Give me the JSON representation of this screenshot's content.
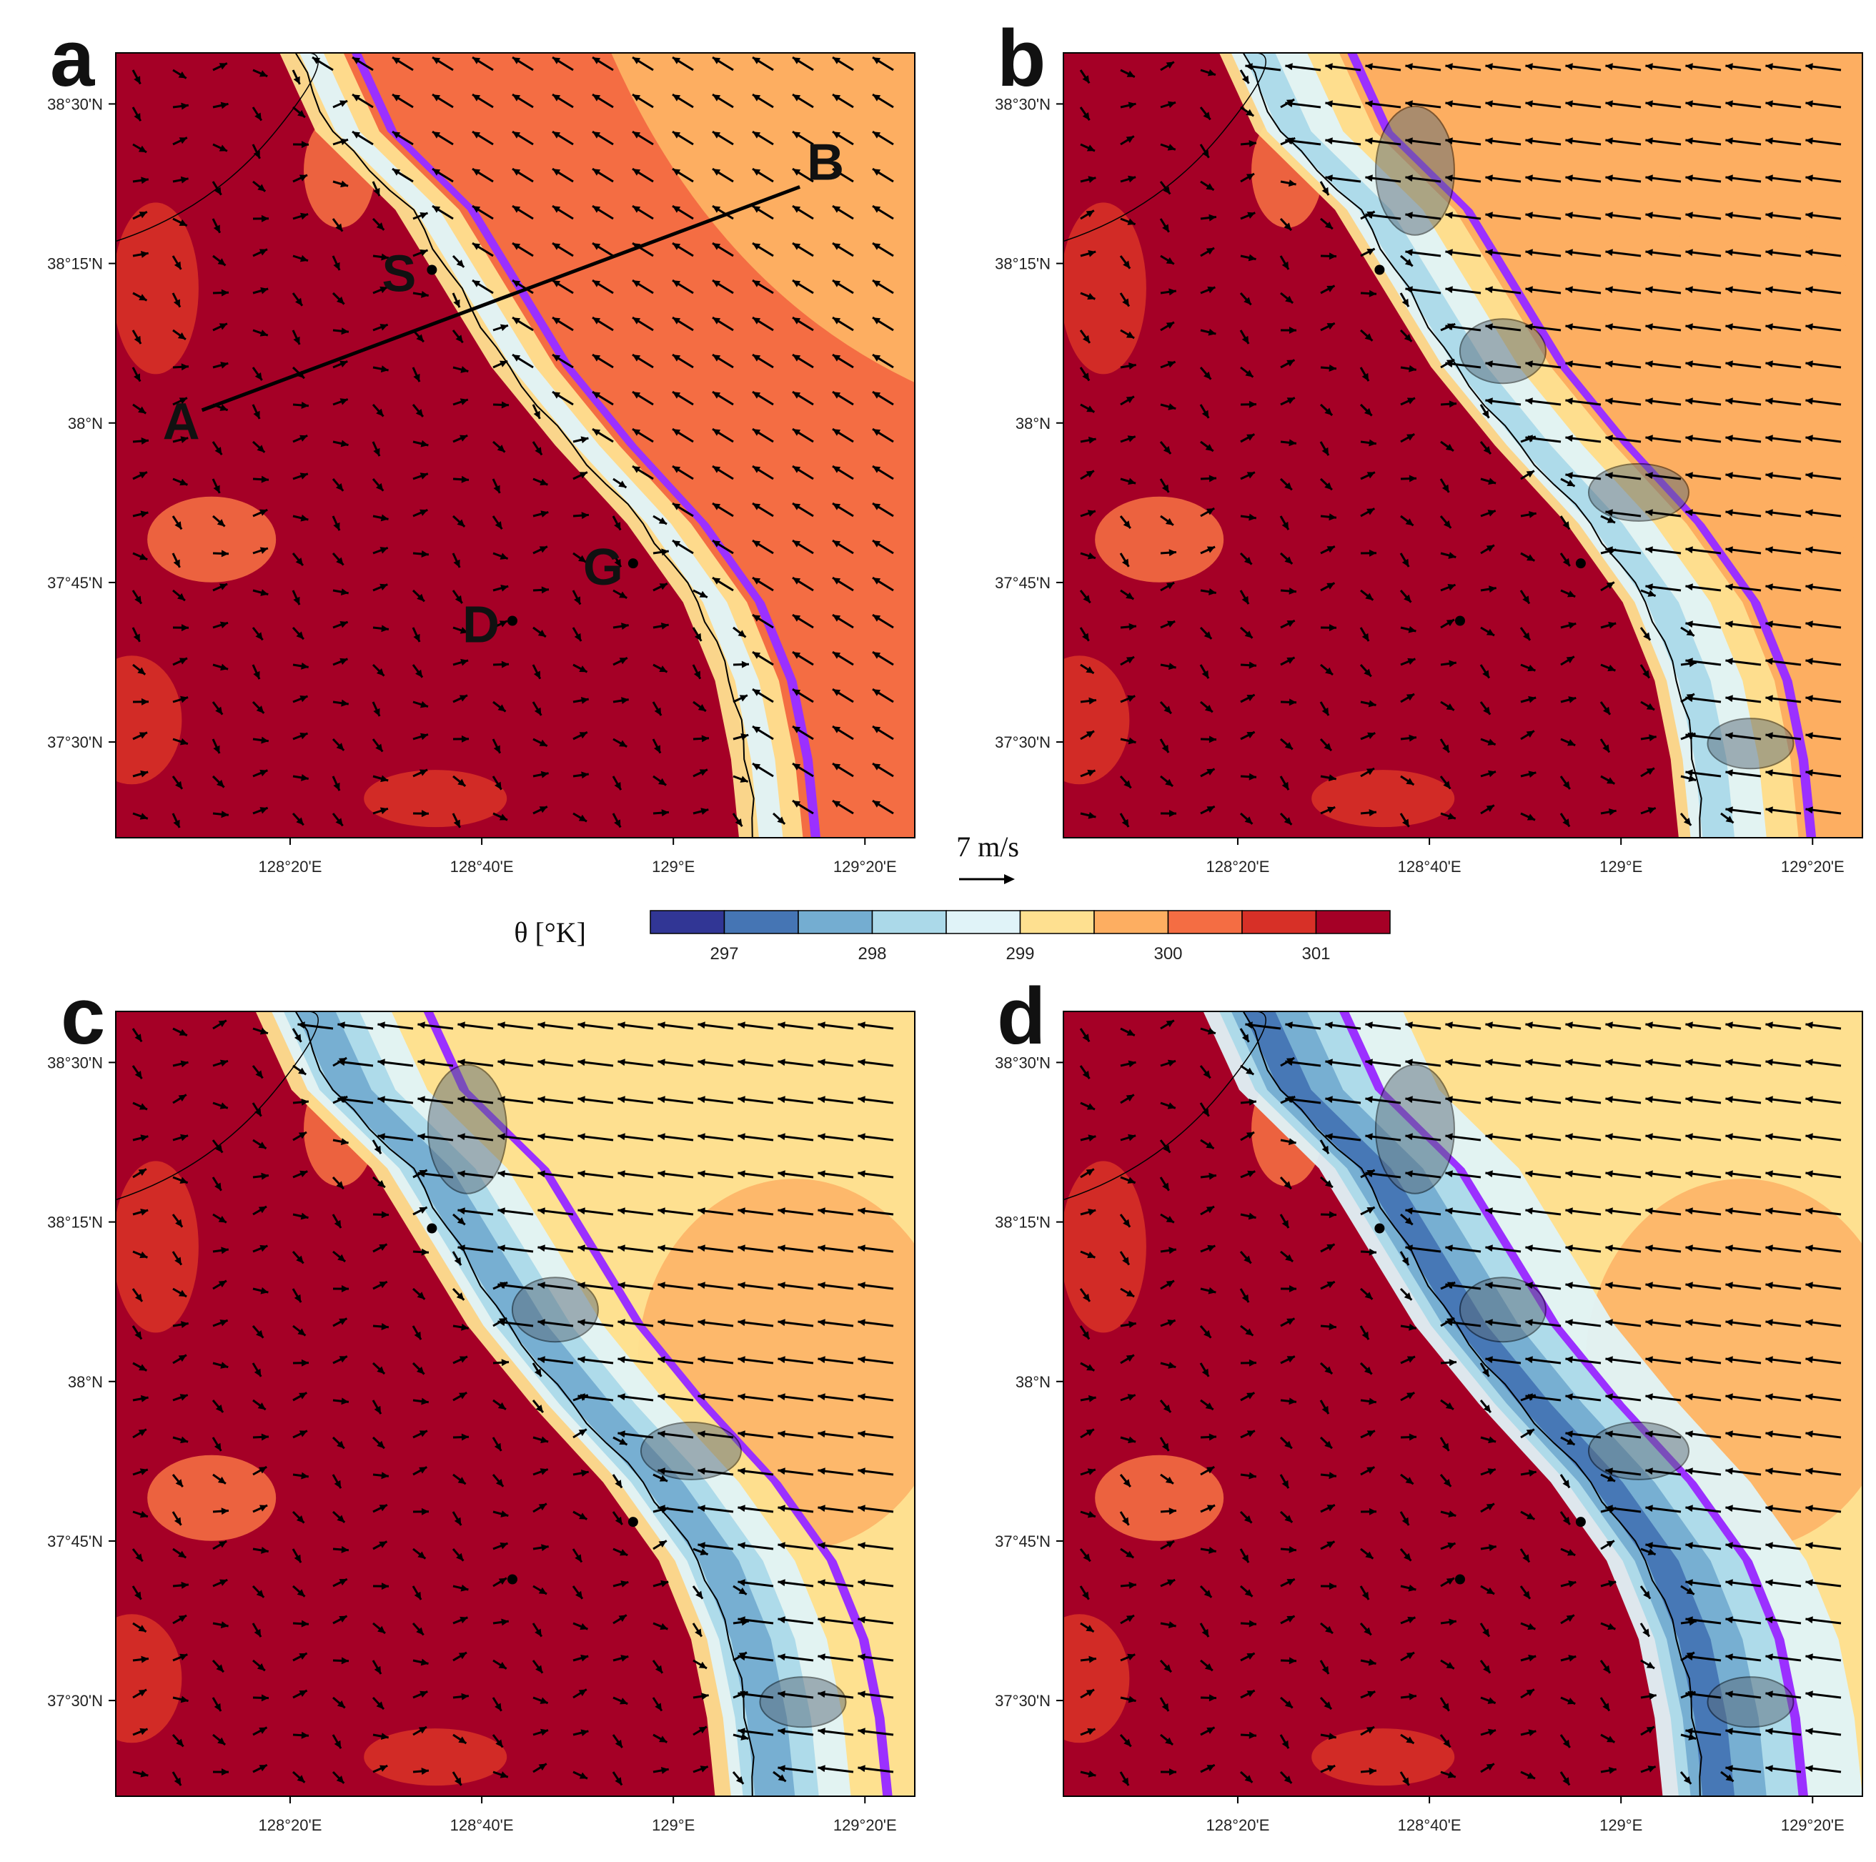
{
  "figure": {
    "panels": [
      {
        "letter": "a",
        "variant": 0,
        "features": {
          "section": true,
          "labels": true
        }
      },
      {
        "letter": "b",
        "variant": 1,
        "features": {
          "section": false,
          "labels": false
        }
      },
      {
        "letter": "c",
        "variant": 2,
        "features": {
          "section": false,
          "labels": false
        }
      },
      {
        "letter": "d",
        "variant": 3,
        "features": {
          "section": false,
          "labels": false
        }
      }
    ],
    "axes": {
      "lon_range": [
        128.03,
        129.42
      ],
      "lat_range": [
        37.35,
        38.58
      ],
      "x_ticks": [
        {
          "value": 128.3333,
          "label": "128°20'E"
        },
        {
          "value": 128.6667,
          "label": "128°40'E"
        },
        {
          "value": 129.0,
          "label": "129°E"
        },
        {
          "value": 129.3333,
          "label": "129°20'E"
        }
      ],
      "y_ticks": [
        {
          "value": 38.5,
          "label": "38°30'N"
        },
        {
          "value": 38.25,
          "label": "38°15'N"
        },
        {
          "value": 38.0,
          "label": "38°N"
        },
        {
          "value": 37.75,
          "label": "37°45'N"
        },
        {
          "value": 37.5,
          "label": "37°30'N"
        }
      ]
    },
    "colorbar": {
      "title": "θ [°K]",
      "bin_colors": [
        "#313695",
        "#4575b4",
        "#74add1",
        "#abd9e9",
        "#e0f3f8",
        "#fee090",
        "#fdae61",
        "#f46d43",
        "#d73027",
        "#a50026"
      ],
      "labels": [
        "297",
        "298",
        "299",
        "300",
        "301"
      ]
    },
    "reference_vector": {
      "label": "7 m/s",
      "speed": 7
    },
    "cross_section": {
      "start_label": "A",
      "end_label": "B",
      "start": [
        128.18,
        38.02
      ],
      "end": [
        129.22,
        38.37
      ]
    },
    "stations": [
      {
        "label": "S",
        "lon": 128.58,
        "lat": 38.24
      },
      {
        "label": "G",
        "lon": 128.93,
        "lat": 37.78
      },
      {
        "label": "D",
        "lon": 128.72,
        "lat": 37.69
      }
    ],
    "colors": {
      "coastline": "#000000",
      "overlay_purple": "#9b30ff",
      "cloud_gray": "#5a6b7a"
    }
  }
}
